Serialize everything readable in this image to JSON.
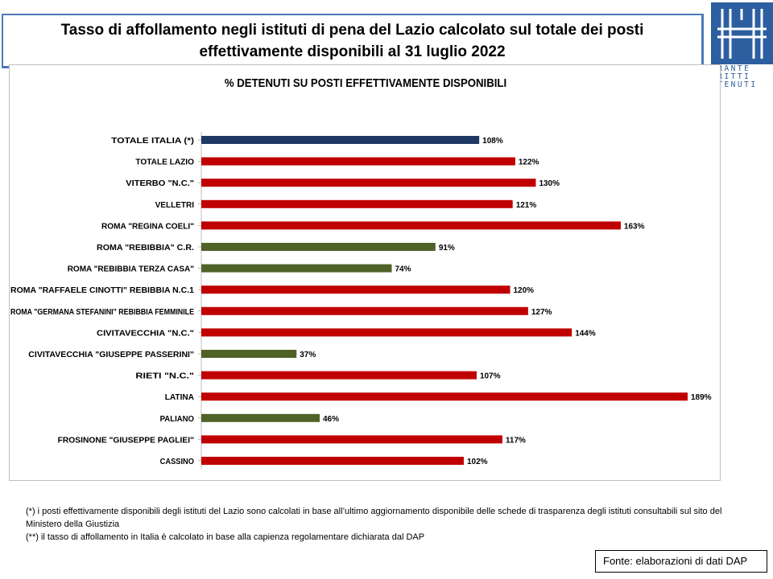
{
  "header": {
    "title": "Tasso di affollamento negli istituti di pena del Lazio calcolato sul totale dei posti effettivamente disponibili al 31 luglio 2022",
    "logo_text": [
      "ARANTE",
      "IRITTI",
      "ETENUTI"
    ]
  },
  "colors": {
    "italy": "#1f3864",
    "over_capacity": "#c00000",
    "under_capacity": "#4f6228",
    "logo": "#2d5fa0"
  },
  "chart_data": {
    "type": "bar",
    "orientation": "horizontal",
    "title": "% DETENUTI SU POSTI EFFETTIVAMENTE DISPONIBILI",
    "categories": [
      "TOTALE ITALIA (*)",
      "TOTALE LAZIO",
      "VITERBO \"N.C.\"",
      "VELLETRI",
      "ROMA \"REGINA COELI\"",
      "ROMA \"REBIBBIA\" C.R.",
      "ROMA \"REBIBBIA TERZA CASA\"",
      "ROMA \"RAFFAELE CINOTTI\" REBIBBIA N.C.1",
      "ROMA \"GERMANA STEFANINI\" REBIBBIA FEMMINILE",
      "CIVITAVECCHIA \"N.C.\"",
      "CIVITAVECCHIA \"GIUSEPPE PASSERINI\"",
      "RIETI \"N.C.\"",
      "LATINA",
      "PALIANO",
      "FROSINONE \"GIUSEPPE PAGLIEI\"",
      "CASSINO"
    ],
    "values": [
      108,
      122,
      130,
      121,
      163,
      91,
      74,
      120,
      127,
      144,
      37,
      107,
      189,
      46,
      117,
      102
    ],
    "value_labels": [
      "108%",
      "122%",
      "130%",
      "121%",
      "163%",
      "91%",
      "74%",
      "120%",
      "127%",
      "144%",
      "37%",
      "107%",
      "189%",
      "46%",
      "117%",
      "102%"
    ],
    "bar_colors": [
      "#1f3864",
      "#c00000",
      "#c00000",
      "#c00000",
      "#c00000",
      "#4f6228",
      "#4f6228",
      "#c00000",
      "#c00000",
      "#c00000",
      "#4f6228",
      "#c00000",
      "#c00000",
      "#4f6228",
      "#c00000",
      "#c00000"
    ],
    "xlim": [
      0,
      189
    ],
    "grid": false,
    "legend": "none"
  },
  "footnotes": [
    "(*) i posti effettivamente disponibili  degli istituti del Lazio sono calcolati in base all’ultimo aggiornamento disponibile  delle schede  di trasparenza degli istituti consultabili sul sito del Ministero della Giustizia",
    "(**) il tasso di affollamento  in Italia è calcolato in base alla capienza regolamentare dichiarata dal DAP"
  ],
  "source": "Fonte: elaborazioni di dati DAP"
}
